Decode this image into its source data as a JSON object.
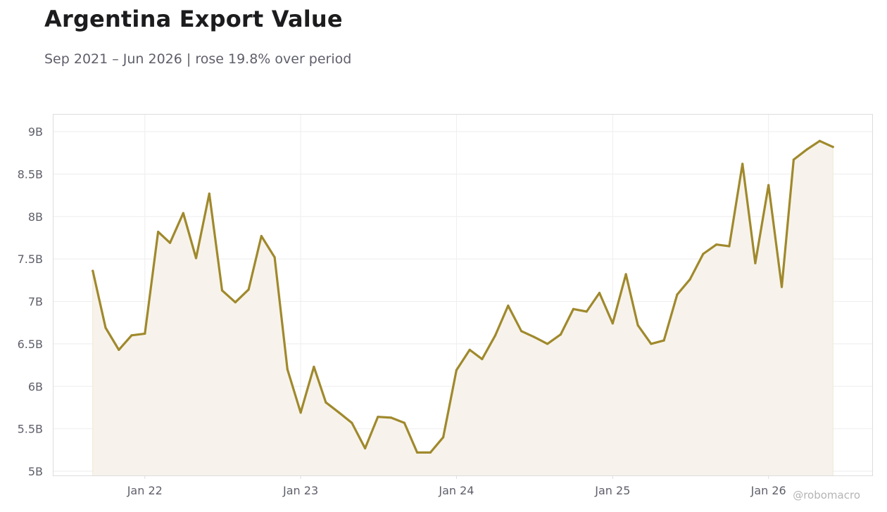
{
  "header": {
    "title": "Argentina Export Value",
    "subtitle": "Sep 2021 – Jun 2026 | rose 19.8% over period"
  },
  "watermark": "@robomacro",
  "colors": {
    "line": "#a0892c",
    "fill": "#f7f3ec",
    "grid": "#eeeeee",
    "frame": "#dddddd",
    "text": "#5f5f6b"
  },
  "chart_data": {
    "type": "area",
    "title": "Argentina Export Value",
    "subtitle": "Sep 2021 – Jun 2026 | rose 19.8% over period",
    "xlabel": "",
    "ylabel": "",
    "grid": true,
    "legend": "none",
    "ylim": [
      4.95,
      9.2
    ],
    "xlim": [
      "2021-06-01",
      "2026-09-01"
    ],
    "yticks": [
      {
        "value": 5.0,
        "label": "5B"
      },
      {
        "value": 5.5,
        "label": "5.5B"
      },
      {
        "value": 6.0,
        "label": "6B"
      },
      {
        "value": 6.5,
        "label": "6.5B"
      },
      {
        "value": 7.0,
        "label": "7B"
      },
      {
        "value": 7.5,
        "label": "7.5B"
      },
      {
        "value": 8.0,
        "label": "8B"
      },
      {
        "value": 8.5,
        "label": "8.5B"
      },
      {
        "value": 9.0,
        "label": "9B"
      }
    ],
    "xticks": [
      {
        "date": "2022-01-01",
        "label": "Jan 22"
      },
      {
        "date": "2023-01-01",
        "label": "Jan 23"
      },
      {
        "date": "2024-01-01",
        "label": "Jan 24"
      },
      {
        "date": "2025-01-01",
        "label": "Jan 25"
      },
      {
        "date": "2026-01-01",
        "label": "Jan 26"
      }
    ],
    "x": [
      "2021-09",
      "2021-10",
      "2021-11",
      "2021-12",
      "2022-01",
      "2022-02",
      "2022-03",
      "2022-04",
      "2022-05",
      "2022-06",
      "2022-07",
      "2022-08",
      "2022-09",
      "2022-10",
      "2022-11",
      "2022-12",
      "2023-01",
      "2023-02",
      "2023-03",
      "2023-04",
      "2023-05",
      "2023-06",
      "2023-07",
      "2023-08",
      "2023-09",
      "2023-10",
      "2023-11",
      "2023-12",
      "2024-01",
      "2024-02",
      "2024-03",
      "2024-04",
      "2024-05",
      "2024-06",
      "2024-07",
      "2024-08",
      "2024-09",
      "2024-10",
      "2024-11",
      "2024-12",
      "2025-01",
      "2025-02",
      "2025-03",
      "2025-04",
      "2025-05",
      "2025-06",
      "2025-07",
      "2025-08",
      "2025-09",
      "2025-10",
      "2025-11",
      "2025-12",
      "2026-01",
      "2026-02",
      "2026-03",
      "2026-04",
      "2026-05",
      "2026-06"
    ],
    "series": [
      {
        "values": [
          7.36,
          6.69,
          6.43,
          6.6,
          6.62,
          7.82,
          7.69,
          8.04,
          7.51,
          8.27,
          7.13,
          6.99,
          7.14,
          7.77,
          7.52,
          6.2,
          5.69,
          6.23,
          5.81,
          5.69,
          5.57,
          5.27,
          5.64,
          5.63,
          5.57,
          5.22,
          5.22,
          5.4,
          6.19,
          6.43,
          6.32,
          6.6,
          6.95,
          6.65,
          6.58,
          6.5,
          6.61,
          6.91,
          6.88,
          7.1,
          6.74,
          7.32,
          6.72,
          6.5,
          6.54,
          7.08,
          7.26,
          7.56,
          7.67,
          7.65,
          8.62,
          7.45,
          8.37,
          7.17,
          8.67,
          8.79,
          8.89,
          8.82
        ]
      }
    ]
  }
}
